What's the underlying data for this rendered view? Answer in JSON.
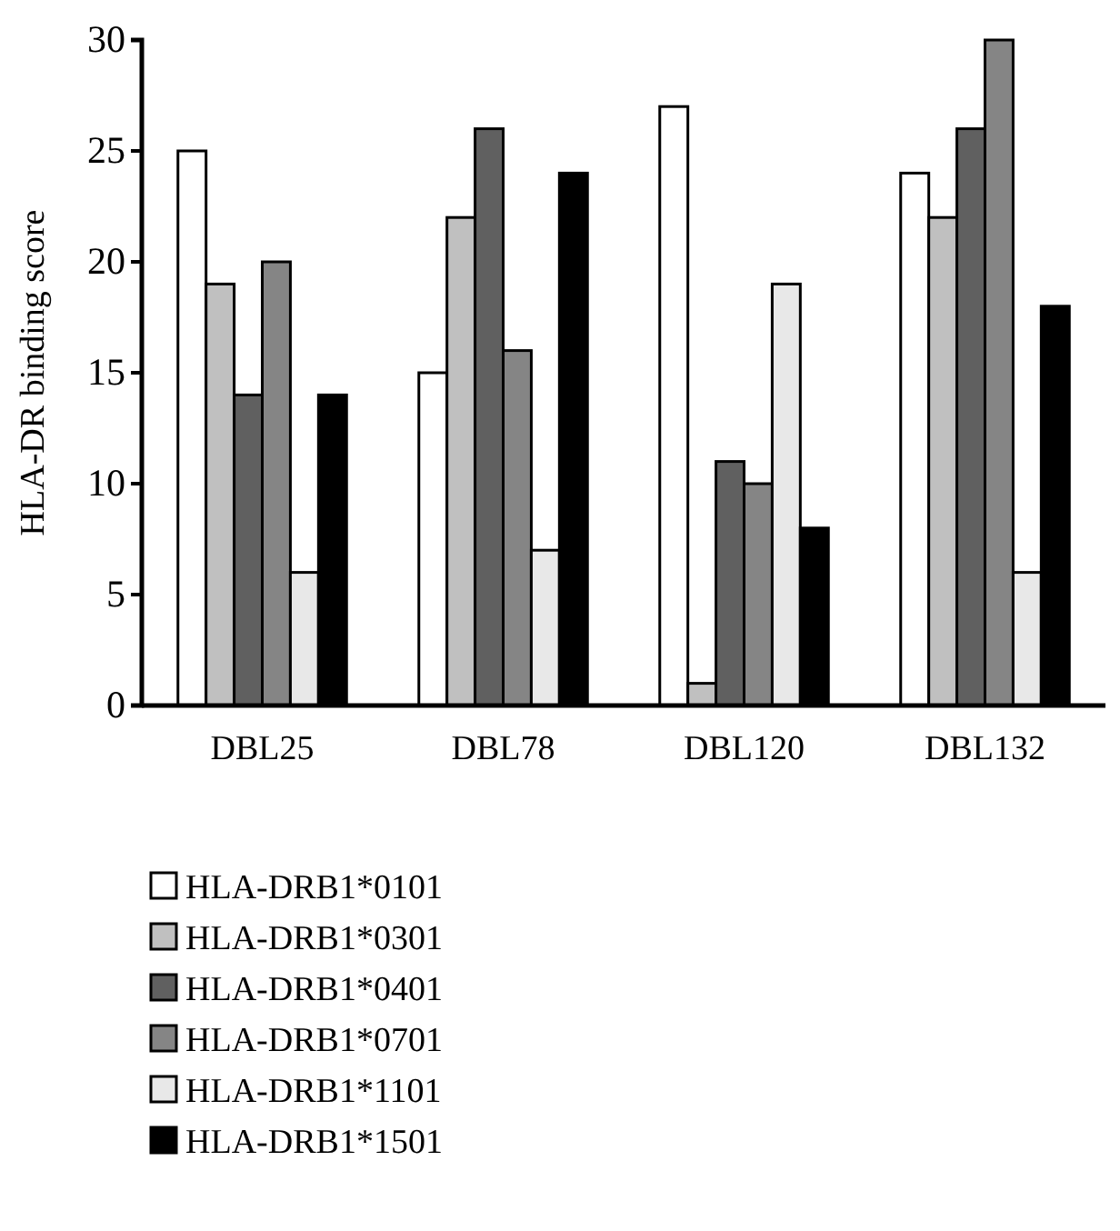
{
  "chart_data": {
    "type": "bar",
    "ylabel": "HLA-DR binding score",
    "categories": [
      "DBL25",
      "DBL78",
      "DBL120",
      "DBL132"
    ],
    "series": [
      {
        "name": "HLA-DRB1*0101",
        "color": "#ffffff",
        "values": [
          25,
          15,
          27,
          24
        ]
      },
      {
        "name": "HLA-DRB1*0301",
        "color": "#c0c0c0",
        "values": [
          19,
          22,
          1,
          22
        ]
      },
      {
        "name": "HLA-DRB1*0401",
        "color": "#606060",
        "values": [
          14,
          26,
          11,
          26
        ]
      },
      {
        "name": "HLA-DRB1*0701",
        "color": "#858585",
        "values": [
          20,
          16,
          10,
          30
        ]
      },
      {
        "name": "HLA-DRB1*1101",
        "color": "#e8e8e8",
        "values": [
          6,
          7,
          19,
          6
        ]
      },
      {
        "name": "HLA-DRB1*1501",
        "color": "#000000",
        "values": [
          14,
          24,
          8,
          18
        ]
      }
    ],
    "ylim": [
      0,
      30
    ],
    "yticks": [
      0,
      5,
      10,
      15,
      20,
      25,
      30
    ],
    "legend": "bottom",
    "grid": false
  }
}
